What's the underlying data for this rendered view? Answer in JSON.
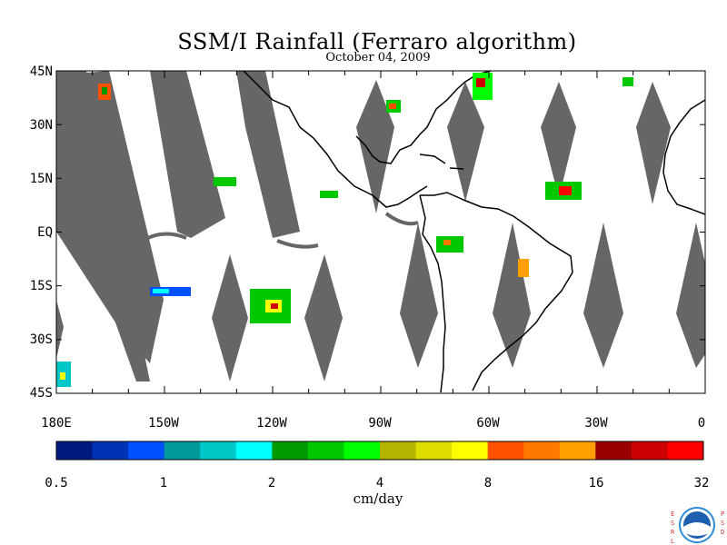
{
  "title": "SSM/I Rainfall (Ferraro algorithm)",
  "subtitle": "October 04, 2009",
  "lat_labels": [
    "45N",
    "30N",
    "15N",
    "EQ",
    "15S",
    "30S",
    "45S"
  ],
  "lon_labels": [
    "180E",
    "150W",
    "120W",
    "90W",
    "60W",
    "30W",
    "0"
  ],
  "colorbar": {
    "colors": [
      "#001a80",
      "#0033b3",
      "#0050ff",
      "#009999",
      "#00c8c8",
      "#00ffff",
      "#009900",
      "#00c800",
      "#00ff00",
      "#b3b300",
      "#dddd00",
      "#ffff00",
      "#ff5000",
      "#ff7800",
      "#ffa000",
      "#990000",
      "#cc0000",
      "#ff0000"
    ],
    "tick_labels": [
      "0.5",
      "1",
      "2",
      "4",
      "8",
      "16",
      "32"
    ],
    "unit": "cm/day"
  },
  "logo": {
    "left_letters": "ESRL",
    "right_letters": "PSD",
    "icon": "noaa-logo-icon"
  },
  "colors": {
    "swath_gap": "#666666",
    "coastline": "#000000",
    "background": "#ffffff"
  }
}
